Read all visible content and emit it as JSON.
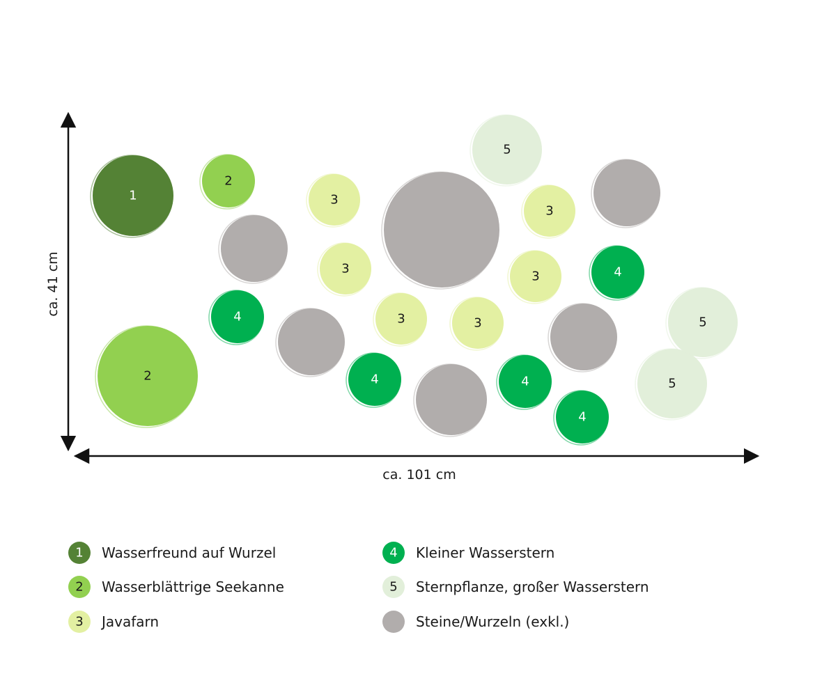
{
  "dimensions": {
    "height": "ca. 41 cm",
    "width": "ca. 101 cm"
  },
  "plants": [
    {
      "label": "1"
    },
    {
      "label": "2"
    },
    {
      "label": "2"
    },
    {
      "label": "3"
    },
    {
      "label": "3"
    },
    {
      "label": "3"
    },
    {
      "label": "3"
    },
    {
      "label": "3"
    },
    {
      "label": "3"
    },
    {
      "label": "4"
    },
    {
      "label": "4"
    },
    {
      "label": "4"
    },
    {
      "label": "4"
    },
    {
      "label": "4"
    },
    {
      "label": "5"
    },
    {
      "label": "5"
    },
    {
      "label": "5"
    }
  ],
  "legend": [
    {
      "number": "1",
      "label": "Wasserfreund auf Wurzel"
    },
    {
      "number": "2",
      "label": "Wasserblättrige Seekanne"
    },
    {
      "number": "3",
      "label": "Javafarn"
    },
    {
      "number": "4",
      "label": "Kleiner Wasserstern"
    },
    {
      "number": "5",
      "label": "Sternpflanze, großer Wasserstern"
    },
    {
      "label": "Steine/Wurzeln (exkl.)"
    }
  ]
}
